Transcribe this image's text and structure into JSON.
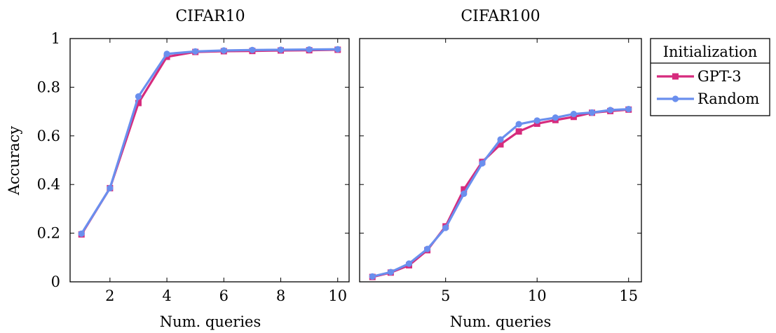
{
  "chart_data": [
    {
      "type": "line",
      "title": "CIFAR10",
      "xlabel": "Num. queries",
      "ylabel": "Accuracy",
      "xlim": [
        0.6,
        10.4
      ],
      "ylim": [
        0,
        1
      ],
      "xticks": [
        2,
        4,
        6,
        8,
        10
      ],
      "yticks": [
        0,
        0.2,
        0.4,
        0.6,
        0.8,
        1
      ],
      "ytick_labels": [
        "0",
        "0.2",
        "0.4",
        "0.6",
        "0.8",
        "1"
      ],
      "grid": false,
      "x": [
        1,
        2,
        3,
        4,
        5,
        6,
        7,
        8,
        9,
        10
      ],
      "series": [
        {
          "name": "GPT-3",
          "color": "#d62b7d",
          "marker": "square",
          "values": [
            0.195,
            0.385,
            0.735,
            0.925,
            0.945,
            0.948,
            0.949,
            0.951,
            0.952,
            0.954
          ]
        },
        {
          "name": "Random",
          "color": "#6a8fee",
          "marker": "circle",
          "values": [
            0.198,
            0.385,
            0.762,
            0.937,
            0.947,
            0.951,
            0.953,
            0.954,
            0.955,
            0.956
          ]
        }
      ]
    },
    {
      "type": "line",
      "title": "CIFAR100",
      "xlabel": "Num. queries",
      "ylabel": "",
      "xlim": [
        0.3,
        15.7
      ],
      "ylim": [
        0,
        1
      ],
      "xticks": [
        5,
        10,
        15
      ],
      "yticks": [
        0,
        0.2,
        0.4,
        0.6,
        0.8,
        1
      ],
      "grid": false,
      "x": [
        1,
        2,
        3,
        4,
        5,
        6,
        7,
        8,
        9,
        10,
        11,
        12,
        13,
        14,
        15
      ],
      "series": [
        {
          "name": "GPT-3",
          "color": "#d62b7d",
          "marker": "square",
          "values": [
            0.02,
            0.038,
            0.068,
            0.13,
            0.228,
            0.38,
            0.493,
            0.565,
            0.618,
            0.65,
            0.665,
            0.678,
            0.695,
            0.702,
            0.708
          ]
        },
        {
          "name": "Random",
          "color": "#6a8fee",
          "marker": "circle",
          "values": [
            0.022,
            0.04,
            0.075,
            0.135,
            0.222,
            0.362,
            0.487,
            0.585,
            0.648,
            0.663,
            0.675,
            0.69,
            0.696,
            0.706,
            0.71
          ]
        }
      ]
    }
  ],
  "legend": {
    "title": "Initialization",
    "placement": "outside-right",
    "entries": [
      {
        "label": "GPT-3",
        "color": "#d62b7d",
        "marker": "square"
      },
      {
        "label": "Random",
        "color": "#6a8fee",
        "marker": "circle"
      }
    ]
  }
}
